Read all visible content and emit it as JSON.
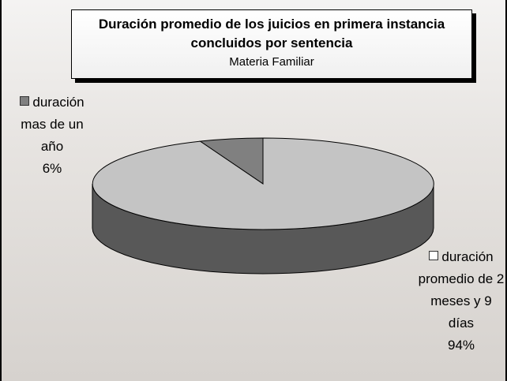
{
  "chart_data": {
    "type": "pie3d",
    "title": "Duración promedio de los juicios en primera instancia concluidos por sentencia",
    "subtitle": "Materia Familiar",
    "categories": [
      "duración mas de un año",
      "duración promedio de 2 meses y 9 días"
    ],
    "values": [
      6,
      94
    ],
    "value_labels": [
      "6%",
      "94%"
    ],
    "colors": [
      "#808080",
      "#c4c4c4"
    ]
  }
}
